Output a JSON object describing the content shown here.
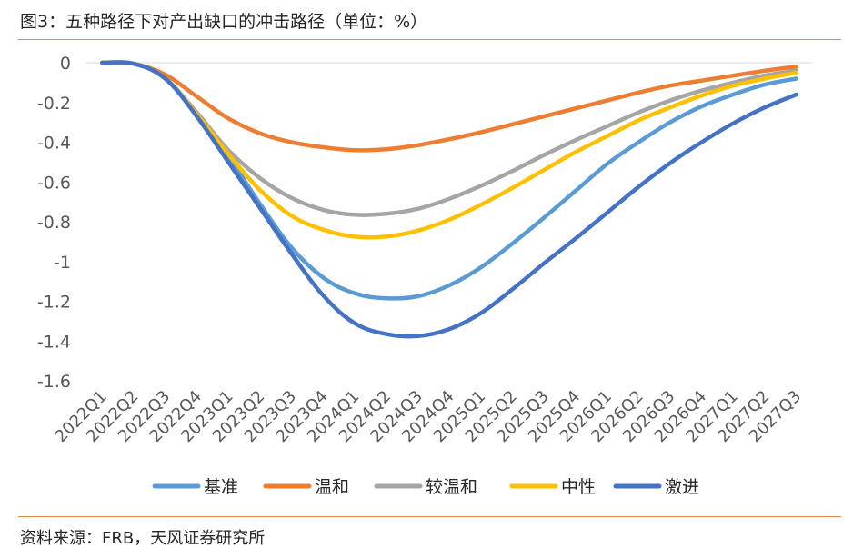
{
  "header": {
    "title": "图3：五种路径下对产出缺口的冲击路径（单位：%）"
  },
  "footer": {
    "source": "资料来源：FRB，天风证券研究所"
  },
  "colors": {
    "accent_rule": "#e7874a"
  },
  "chart_data": {
    "type": "line",
    "title": "图3：五种路径下对产出缺口的冲击路径（单位：%）",
    "xlabel": "",
    "ylabel": "",
    "ylim": [
      -1.6,
      0
    ],
    "yticks": [
      "0",
      "-0.2",
      "-0.4",
      "-0.6",
      "-0.8",
      "-1",
      "-1.2",
      "-1.4",
      "-1.6"
    ],
    "ytick_values": [
      0,
      -0.2,
      -0.4,
      -0.6,
      -0.8,
      -1.0,
      -1.2,
      -1.4,
      -1.6
    ],
    "grid": false,
    "legend_position": "bottom",
    "categories": [
      "2022Q1",
      "2022Q2",
      "2022Q3",
      "2022Q4",
      "2023Q1",
      "2023Q2",
      "2023Q3",
      "2023Q4",
      "2024Q1",
      "2024Q2",
      "2024Q3",
      "2024Q4",
      "2025Q1",
      "2025Q2",
      "2025Q3",
      "2025Q4",
      "2026Q1",
      "2026Q2",
      "2026Q3",
      "2026Q4",
      "2027Q1",
      "2027Q2",
      "2027Q3"
    ],
    "series": [
      {
        "name": "基准",
        "color": "#5b9bd5",
        "values": [
          0,
          -0.005,
          -0.08,
          -0.26,
          -0.47,
          -0.71,
          -0.93,
          -1.08,
          -1.16,
          -1.185,
          -1.175,
          -1.12,
          -1.03,
          -0.91,
          -0.78,
          -0.645,
          -0.51,
          -0.4,
          -0.3,
          -0.22,
          -0.16,
          -0.11,
          -0.08
        ]
      },
      {
        "name": "温和",
        "color": "#ed7d31",
        "values": [
          0,
          -0.005,
          -0.06,
          -0.17,
          -0.28,
          -0.355,
          -0.4,
          -0.425,
          -0.44,
          -0.435,
          -0.415,
          -0.385,
          -0.35,
          -0.31,
          -0.27,
          -0.23,
          -0.19,
          -0.15,
          -0.115,
          -0.09,
          -0.065,
          -0.04,
          -0.02
        ]
      },
      {
        "name": "较温和",
        "color": "#a5a5a5",
        "values": [
          0,
          -0.005,
          -0.08,
          -0.25,
          -0.44,
          -0.58,
          -0.68,
          -0.74,
          -0.765,
          -0.76,
          -0.735,
          -0.685,
          -0.62,
          -0.545,
          -0.465,
          -0.39,
          -0.32,
          -0.25,
          -0.19,
          -0.14,
          -0.1,
          -0.065,
          -0.04
        ]
      },
      {
        "name": "中性",
        "color": "#ffc000",
        "values": [
          0,
          -0.005,
          -0.08,
          -0.26,
          -0.46,
          -0.64,
          -0.77,
          -0.84,
          -0.875,
          -0.875,
          -0.845,
          -0.79,
          -0.715,
          -0.63,
          -0.54,
          -0.45,
          -0.37,
          -0.29,
          -0.225,
          -0.165,
          -0.115,
          -0.08,
          -0.05
        ]
      },
      {
        "name": "激进",
        "color": "#4472c4",
        "values": [
          0,
          -0.005,
          -0.08,
          -0.27,
          -0.5,
          -0.73,
          -0.96,
          -1.17,
          -1.31,
          -1.365,
          -1.375,
          -1.34,
          -1.26,
          -1.14,
          -1.01,
          -0.885,
          -0.755,
          -0.625,
          -0.505,
          -0.4,
          -0.305,
          -0.225,
          -0.16
        ]
      }
    ]
  }
}
